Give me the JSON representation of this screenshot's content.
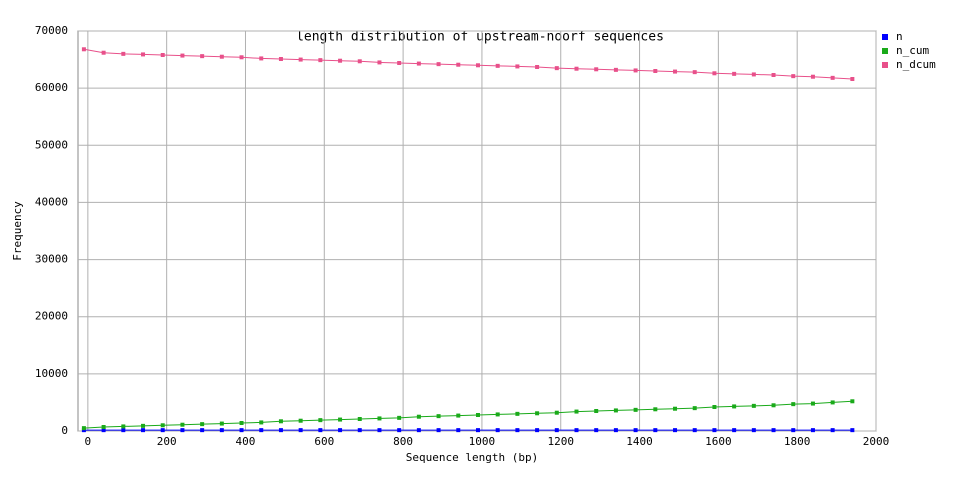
{
  "chart_data": {
    "type": "line",
    "title": "length distribution of upstream-noorf sequences",
    "x_label": "Sequence length (bp)",
    "y_label": "Frequency",
    "x": [
      -10,
      40,
      90,
      140,
      190,
      240,
      290,
      340,
      390,
      440,
      490,
      540,
      590,
      640,
      690,
      740,
      790,
      840,
      890,
      940,
      990,
      1040,
      1090,
      1140,
      1190,
      1240,
      1290,
      1340,
      1390,
      1440,
      1490,
      1540,
      1590,
      1640,
      1690,
      1740,
      1790,
      1840,
      1890,
      1940
    ],
    "series": [
      {
        "name": "n",
        "color": "#0000ff",
        "values": [
          150,
          150,
          150,
          150,
          150,
          150,
          150,
          150,
          150,
          150,
          150,
          150,
          150,
          150,
          150,
          150,
          150,
          150,
          150,
          150,
          150,
          150,
          150,
          150,
          150,
          150,
          150,
          150,
          150,
          150,
          150,
          150,
          150,
          150,
          150,
          150,
          150,
          150,
          150,
          150
        ]
      },
      {
        "name": "n_cum",
        "color": "#1aaa1a",
        "values": [
          500,
          700,
          800,
          900,
          1000,
          1100,
          1200,
          1300,
          1400,
          1500,
          1700,
          1800,
          1900,
          2000,
          2100,
          2200,
          2300,
          2500,
          2600,
          2700,
          2800,
          2900,
          3000,
          3100,
          3200,
          3400,
          3500,
          3600,
          3700,
          3800,
          3900,
          4000,
          4200,
          4300,
          4400,
          4500,
          4700,
          4800,
          5000,
          5200
        ]
      },
      {
        "name": "n_dcum",
        "color": "#e8508a",
        "values": [
          66800,
          66200,
          66000,
          65900,
          65800,
          65700,
          65600,
          65500,
          65400,
          65200,
          65100,
          65000,
          64900,
          64800,
          64700,
          64500,
          64400,
          64300,
          64200,
          64100,
          64000,
          63900,
          63800,
          63700,
          63500,
          63400,
          63300,
          63200,
          63100,
          63000,
          62900,
          62800,
          62600,
          62500,
          62400,
          62300,
          62100,
          62000,
          61800,
          61600
        ]
      }
    ],
    "xlim": [
      -25,
      2000
    ],
    "xticks": [
      0,
      200,
      400,
      600,
      800,
      1000,
      1200,
      1400,
      1600,
      1800,
      2000
    ],
    "ylim": [
      0,
      70000
    ],
    "yticks": [
      0,
      10000,
      20000,
      30000,
      40000,
      50000,
      60000,
      70000
    ],
    "grid": true
  }
}
